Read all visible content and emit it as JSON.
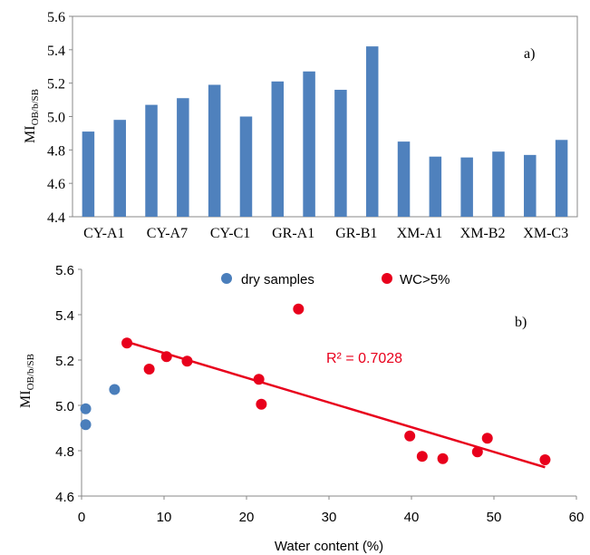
{
  "chart_data": [
    {
      "panel_label": "a)",
      "type": "bar",
      "ylabel_main": "MI",
      "ylabel_sub": "OB/b/SB",
      "ylim": [
        4.4,
        5.6
      ],
      "yticks": [
        "4.4",
        "4.6",
        "4.8",
        "5.0",
        "5.2",
        "5.4",
        "5.6"
      ],
      "category_labels": [
        "CY-A1",
        "CY-A7",
        "CY-C1",
        "GR-A1",
        "GR-B1",
        "XM-A1",
        "XM-B2",
        "XM-C3"
      ],
      "values": [
        4.91,
        4.98,
        5.07,
        5.11,
        5.19,
        5.0,
        5.21,
        5.27,
        5.16,
        5.42,
        4.85,
        4.76,
        4.755,
        4.79,
        4.77,
        4.86
      ],
      "bar_color": "#4f81bd"
    },
    {
      "panel_label": "b)",
      "type": "scatter",
      "xlabel": "Water content (%)",
      "ylabel_main": "MI",
      "ylabel_sub": "OB/b/SB",
      "xlim": [
        0,
        60
      ],
      "ylim": [
        4.6,
        5.6
      ],
      "xticks": [
        "0",
        "10",
        "20",
        "30",
        "40",
        "50",
        "60"
      ],
      "yticks": [
        "4.6",
        "4.8",
        "5.0",
        "5.2",
        "5.4",
        "5.6"
      ],
      "series": [
        {
          "name": "dry samples",
          "color": "#4a7ebb",
          "points": [
            [
              0.5,
              4.985
            ],
            [
              0.5,
              4.915
            ],
            [
              4.0,
              5.07
            ]
          ]
        },
        {
          "name": "WC>5%",
          "color": "#e8001c",
          "points": [
            [
              5.5,
              5.275
            ],
            [
              8.2,
              5.16
            ],
            [
              10.3,
              5.215
            ],
            [
              12.8,
              5.195
            ],
            [
              21.5,
              5.115
            ],
            [
              21.8,
              5.005
            ],
            [
              26.3,
              5.425
            ],
            [
              39.8,
              4.865
            ],
            [
              41.3,
              4.775
            ],
            [
              43.8,
              4.765
            ],
            [
              48.0,
              4.795
            ],
            [
              49.2,
              4.855
            ],
            [
              56.2,
              4.76
            ]
          ]
        }
      ],
      "trendline": {
        "x": [
          5.5,
          56.2
        ],
        "y": [
          5.28,
          4.727
        ],
        "color": "#e8001c"
      },
      "annotation": "R² = 0.7028",
      "annotation_color": "#e8001c"
    }
  ]
}
